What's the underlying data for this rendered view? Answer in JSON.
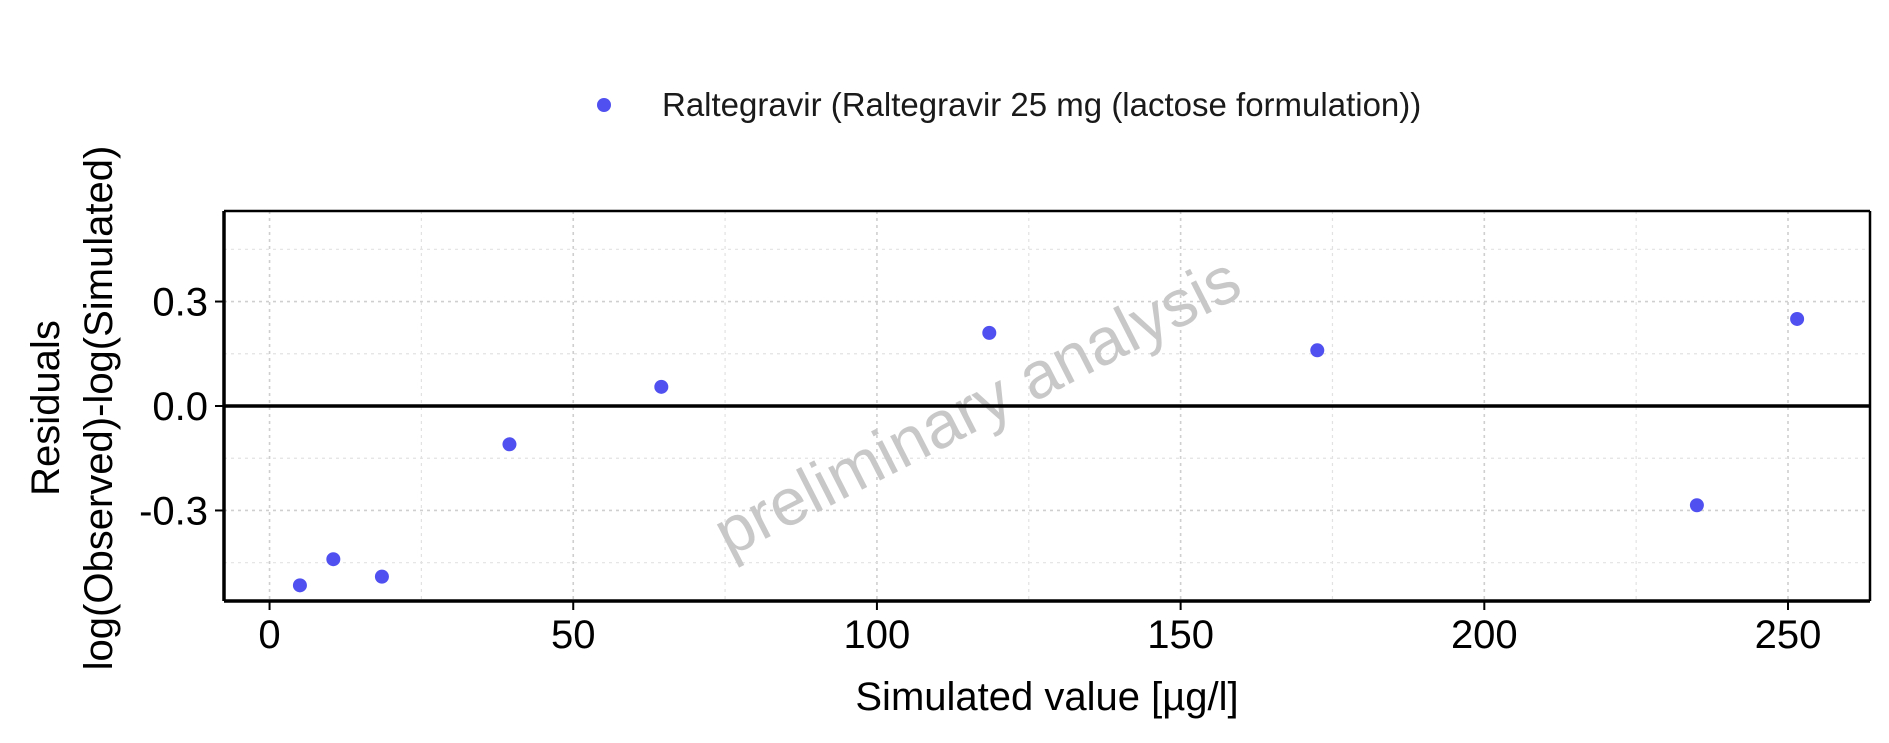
{
  "chart_data": {
    "type": "scatter",
    "title": "",
    "xlabel": "Simulated value [µg/l]",
    "ylabel_lines": [
      "Residuals",
      "log(Observed)-log(Simulated)"
    ],
    "watermark": "preliminary analysis",
    "xlim": [
      -7.5,
      263.5
    ],
    "ylim": [
      -0.56,
      0.56
    ],
    "x_ticks": [
      0,
      50,
      100,
      150,
      200,
      250
    ],
    "y_ticks": [
      0.3,
      0.0,
      -0.3
    ],
    "x_tick_labels": [
      "0",
      "50",
      "100",
      "150",
      "200",
      "250"
    ],
    "y_tick_labels": [
      "0.3",
      "0.0",
      "-0.3"
    ],
    "grid": true,
    "reference_line_y": 0,
    "legend_position": "top",
    "series": [
      {
        "name": "Raltegravir (Raltegravir 25 mg (lactose formulation))",
        "color": "#5050f0",
        "marker": "circle",
        "points": [
          {
            "x": 5.0,
            "y": -0.515
          },
          {
            "x": 10.5,
            "y": -0.44
          },
          {
            "x": 18.5,
            "y": -0.49
          },
          {
            "x": 39.5,
            "y": -0.11
          },
          {
            "x": 64.5,
            "y": 0.055
          },
          {
            "x": 118.5,
            "y": 0.21
          },
          {
            "x": 172.5,
            "y": 0.16
          },
          {
            "x": 235.0,
            "y": -0.285
          },
          {
            "x": 251.5,
            "y": 0.25
          }
        ]
      }
    ]
  }
}
